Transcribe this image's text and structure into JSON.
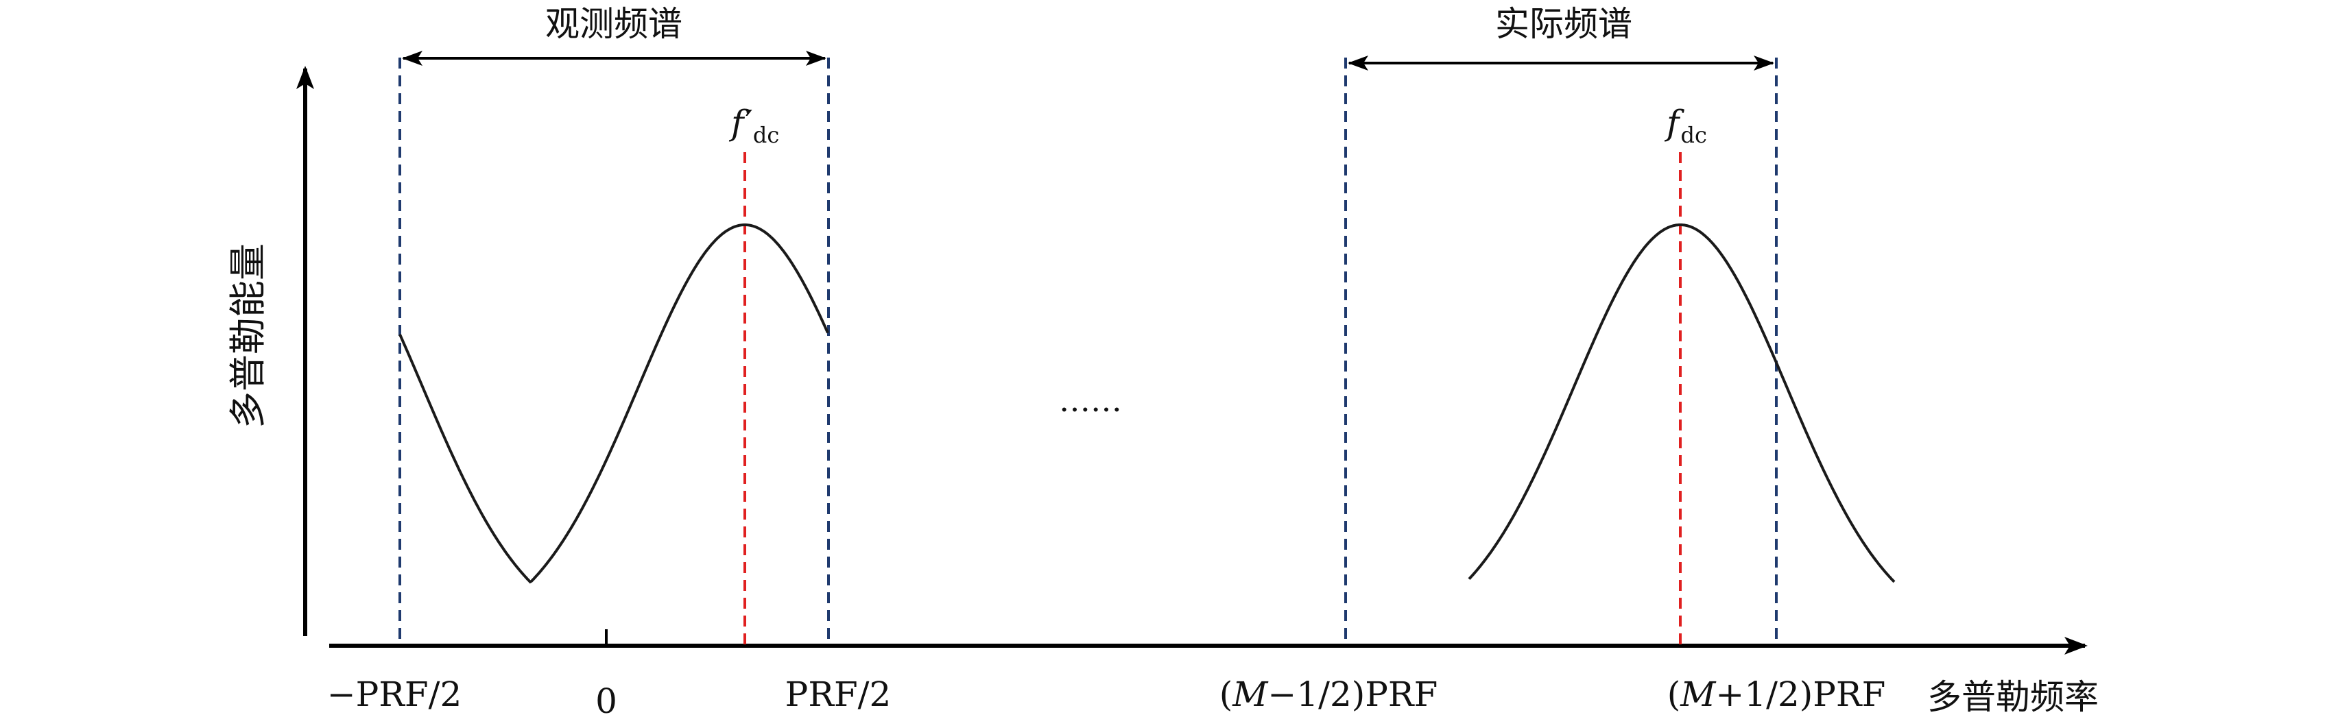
{
  "observed_band": {
    "label": "观测频谱"
  },
  "actual_band": {
    "label": "实际频谱"
  },
  "y_axis": {
    "label": "多普勒能量"
  },
  "x_axis": {
    "label": "多普勒频率"
  },
  "peaks": {
    "observed": {
      "symbol": "f",
      "prime": "′",
      "subscript": "dc"
    },
    "actual": {
      "symbol": "f",
      "subscript": "dc"
    }
  },
  "ellipsis": "……",
  "tick_labels": {
    "neg_half_prf": "−PRF/2",
    "zero": "0",
    "half_prf": "PRF/2",
    "m_minus": {
      "open": "(",
      "var": "M",
      "rest": "−1/2)PRF"
    },
    "m_plus": {
      "open": "(",
      "var": "M",
      "rest": "+1/2)PRF"
    }
  },
  "colors": {
    "axis": "#000000",
    "curve": "#1a1a1a",
    "band_edge": "#1f3a6e",
    "center_line": "#e02020"
  }
}
